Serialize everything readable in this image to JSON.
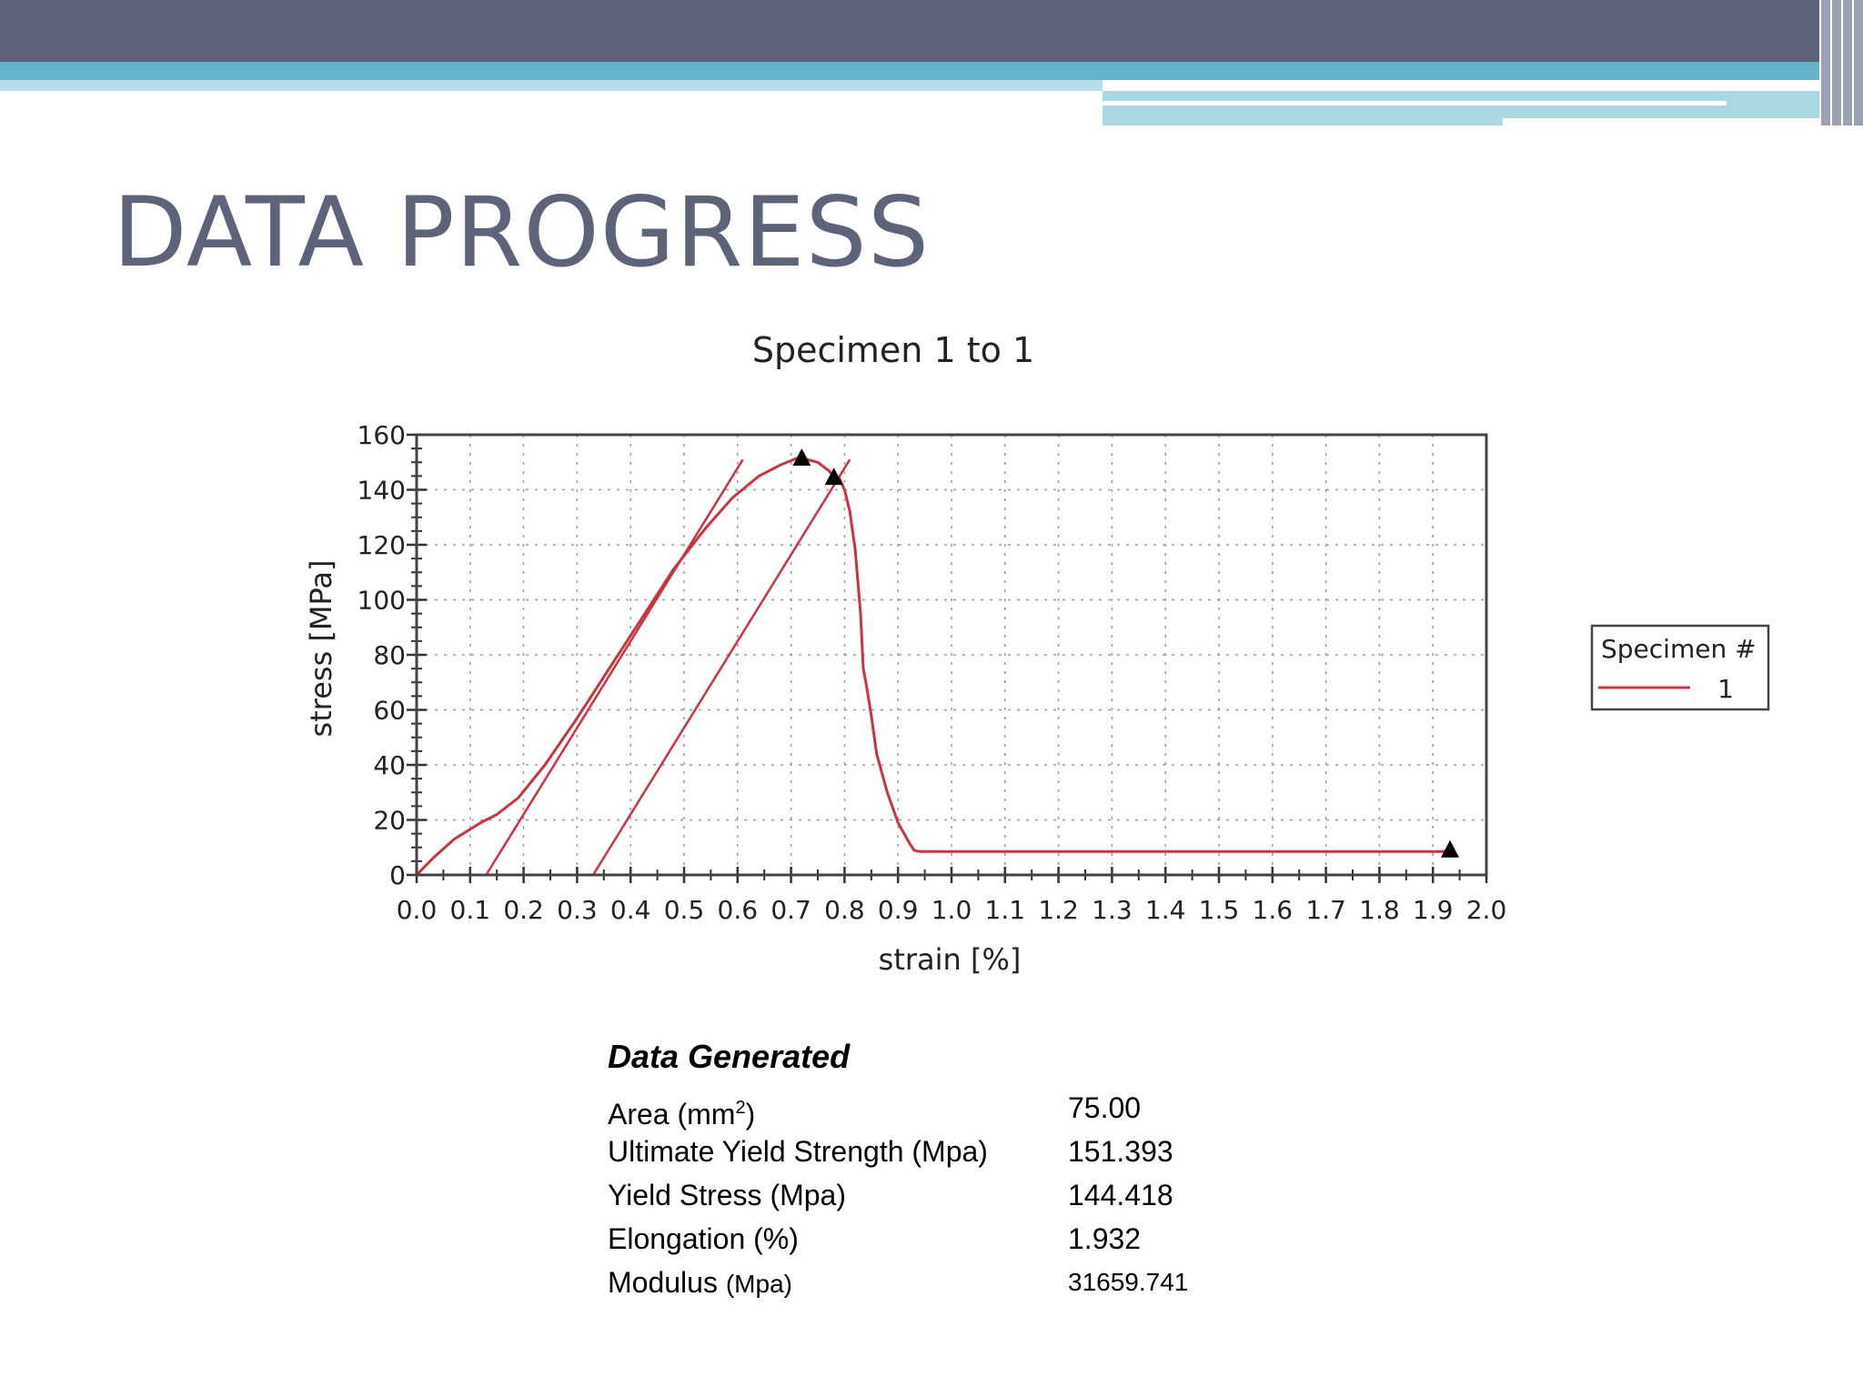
{
  "slide": {
    "title": "DATA PROGRESS"
  },
  "chart_data": {
    "type": "line",
    "title": "Specimen 1 to 1",
    "xlabel": "strain [%]",
    "ylabel": "stress [MPa]",
    "xlim": [
      0.0,
      2.0
    ],
    "ylim": [
      0,
      160
    ],
    "xticks": [
      "0.0",
      "0.1",
      "0.2",
      "0.3",
      "0.4",
      "0.5",
      "0.6",
      "0.7",
      "0.8",
      "0.9",
      "1.0",
      "1.1",
      "1.2",
      "1.3",
      "1.4",
      "1.5",
      "1.6",
      "1.7",
      "1.8",
      "1.9",
      "2.0"
    ],
    "yticks": [
      "0",
      "20",
      "40",
      "60",
      "80",
      "100",
      "120",
      "140",
      "160"
    ],
    "grid": true,
    "legend": {
      "title": "Specimen #",
      "position": "right"
    },
    "series": [
      {
        "name": "1",
        "color": "#cc3340",
        "x": [
          0.0,
          0.03,
          0.07,
          0.12,
          0.15,
          0.19,
          0.24,
          0.3,
          0.36,
          0.42,
          0.48,
          0.54,
          0.59,
          0.64,
          0.68,
          0.71,
          0.73,
          0.75,
          0.77,
          0.78,
          0.79,
          0.8,
          0.81,
          0.82,
          0.83,
          0.835,
          0.84,
          0.85,
          0.86,
          0.88,
          0.9,
          0.92,
          0.93,
          0.94,
          0.95,
          1.0,
          1.2,
          1.4,
          1.6,
          1.8,
          1.932
        ],
        "y": [
          0,
          6,
          13,
          19,
          22,
          28,
          40,
          57,
          75,
          93,
          111,
          126,
          137,
          145,
          149,
          151.4,
          151,
          150,
          147,
          145,
          144.4,
          140,
          132,
          118,
          95,
          75,
          70,
          58,
          44,
          30,
          19,
          12,
          9,
          8.5,
          8.5,
          8.5,
          8.5,
          8.5,
          8.5,
          8.5,
          8.5
        ]
      }
    ],
    "offset_lines": [
      {
        "x": [
          0.13,
          0.61
        ],
        "y": [
          0,
          151
        ]
      },
      {
        "x": [
          0.33,
          0.81
        ],
        "y": [
          0,
          151
        ]
      }
    ],
    "markers": [
      {
        "x": 0.72,
        "y": 151.393
      },
      {
        "x": 0.78,
        "y": 144.418
      },
      {
        "x": 1.932,
        "y": 9
      }
    ]
  },
  "stats": {
    "heading": "Data Generated",
    "rows": [
      {
        "label": "Area (mm",
        "sup": "2",
        "label_tail": ")",
        "value": "75.00"
      },
      {
        "label": "Ultimate Yield Strength (Mpa)",
        "value": "151.393"
      },
      {
        "label": "Yield Stress (Mpa)",
        "value": "144.418"
      },
      {
        "label": "Elongation (%)",
        "value": "1.932"
      },
      {
        "label": "Modulus",
        "label_small": "(Mpa)",
        "value": "31659.741"
      }
    ]
  }
}
